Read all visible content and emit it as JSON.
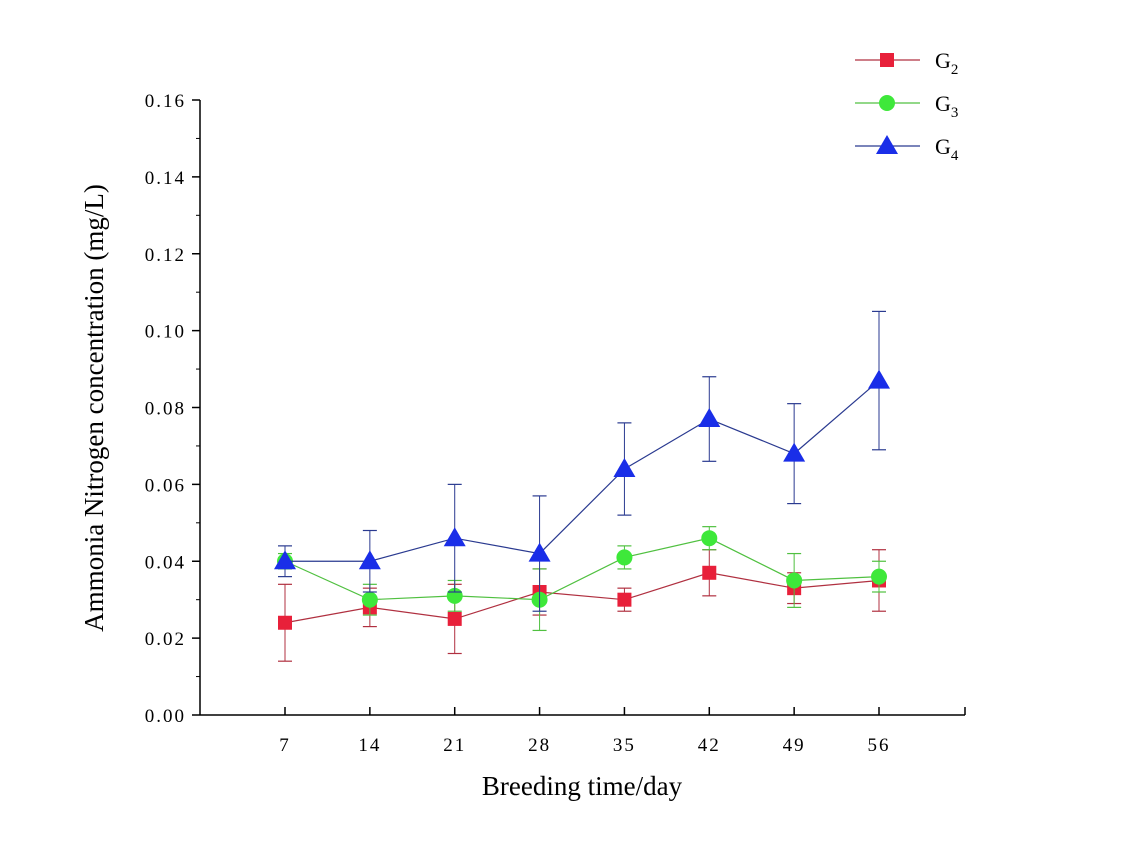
{
  "chart_data": {
    "type": "line",
    "xlabel": "Breeding time/day",
    "ylabel": "Ammonia Nitrogen concentration (mg/L)",
    "x": [
      7,
      14,
      21,
      28,
      35,
      42,
      49,
      56
    ],
    "xlim": [
      0,
      63
    ],
    "ylim": [
      0,
      0.16
    ],
    "yticks": [
      "0.00",
      "0.02",
      "0.04",
      "0.06",
      "0.08",
      "0.10",
      "0.12",
      "0.14",
      "0.16"
    ],
    "grid": false,
    "legend_position": "top-right",
    "series": [
      {
        "name": "G",
        "sub": "2",
        "color": "#e8203a",
        "line_color": "#b03040",
        "marker": "square",
        "values": [
          0.024,
          0.028,
          0.025,
          0.032,
          0.03,
          0.037,
          0.033,
          0.035
        ],
        "errors": [
          0.01,
          0.005,
          0.009,
          0.006,
          0.003,
          0.006,
          0.004,
          0.008
        ]
      },
      {
        "name": "G",
        "sub": "3",
        "color": "#3ee83a",
        "line_color": "#50c040",
        "marker": "circle",
        "values": [
          0.04,
          0.03,
          0.031,
          0.03,
          0.041,
          0.046,
          0.035,
          0.036
        ],
        "errors": [
          0.002,
          0.004,
          0.004,
          0.008,
          0.003,
          0.003,
          0.007,
          0.004
        ]
      },
      {
        "name": "G",
        "sub": "4",
        "color": "#1a2ee8",
        "line_color": "#2a3a90",
        "marker": "triangle",
        "values": [
          0.04,
          0.04,
          0.046,
          0.042,
          0.064,
          0.077,
          0.068,
          0.087
        ],
        "errors": [
          0.004,
          0.008,
          0.014,
          0.015,
          0.012,
          0.011,
          0.013,
          0.018
        ]
      }
    ]
  }
}
